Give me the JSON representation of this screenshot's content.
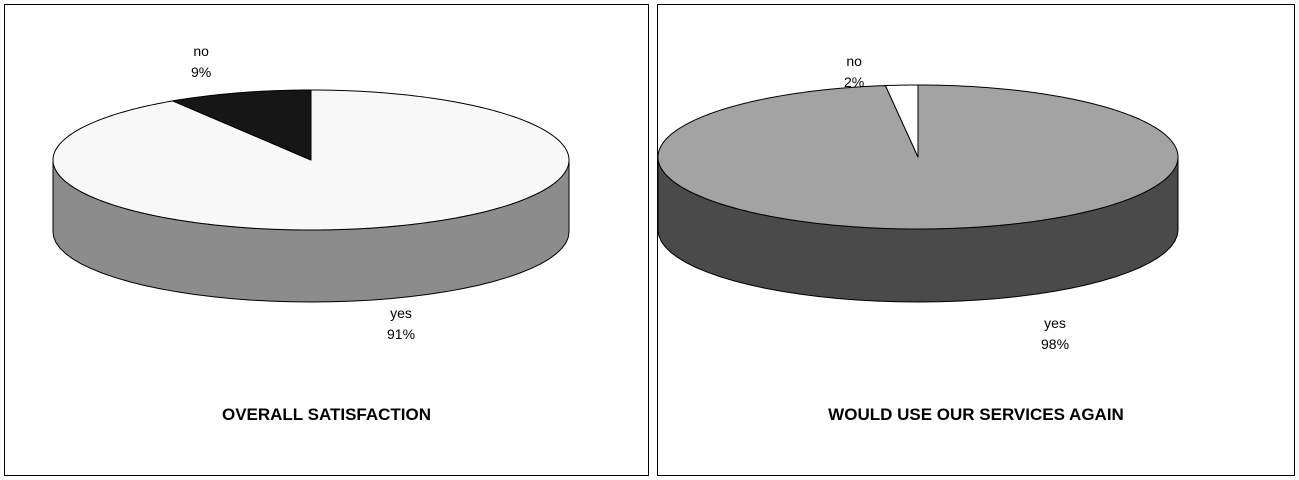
{
  "chart_data": [
    {
      "type": "pie",
      "title": "OVERALL SATISFACTION",
      "slices": [
        {
          "label": "yes",
          "value": 91,
          "value_label": "91%",
          "color": "#f8f8f8",
          "side_color": "#8c8c8c"
        },
        {
          "label": "no",
          "value": 9,
          "value_label": "9%",
          "color": "#161616",
          "side_color": "#161616"
        }
      ]
    },
    {
      "type": "pie",
      "title": "WOULD USE OUR SERVICES AGAIN",
      "slices": [
        {
          "label": "yes",
          "value": 98,
          "value_label": "98%",
          "color": "#a3a3a3",
          "side_color": "#4a4a4a"
        },
        {
          "label": "no",
          "value": 2,
          "value_label": "2%",
          "color": "#ffffff",
          "side_color": "#ffffff"
        }
      ]
    }
  ]
}
